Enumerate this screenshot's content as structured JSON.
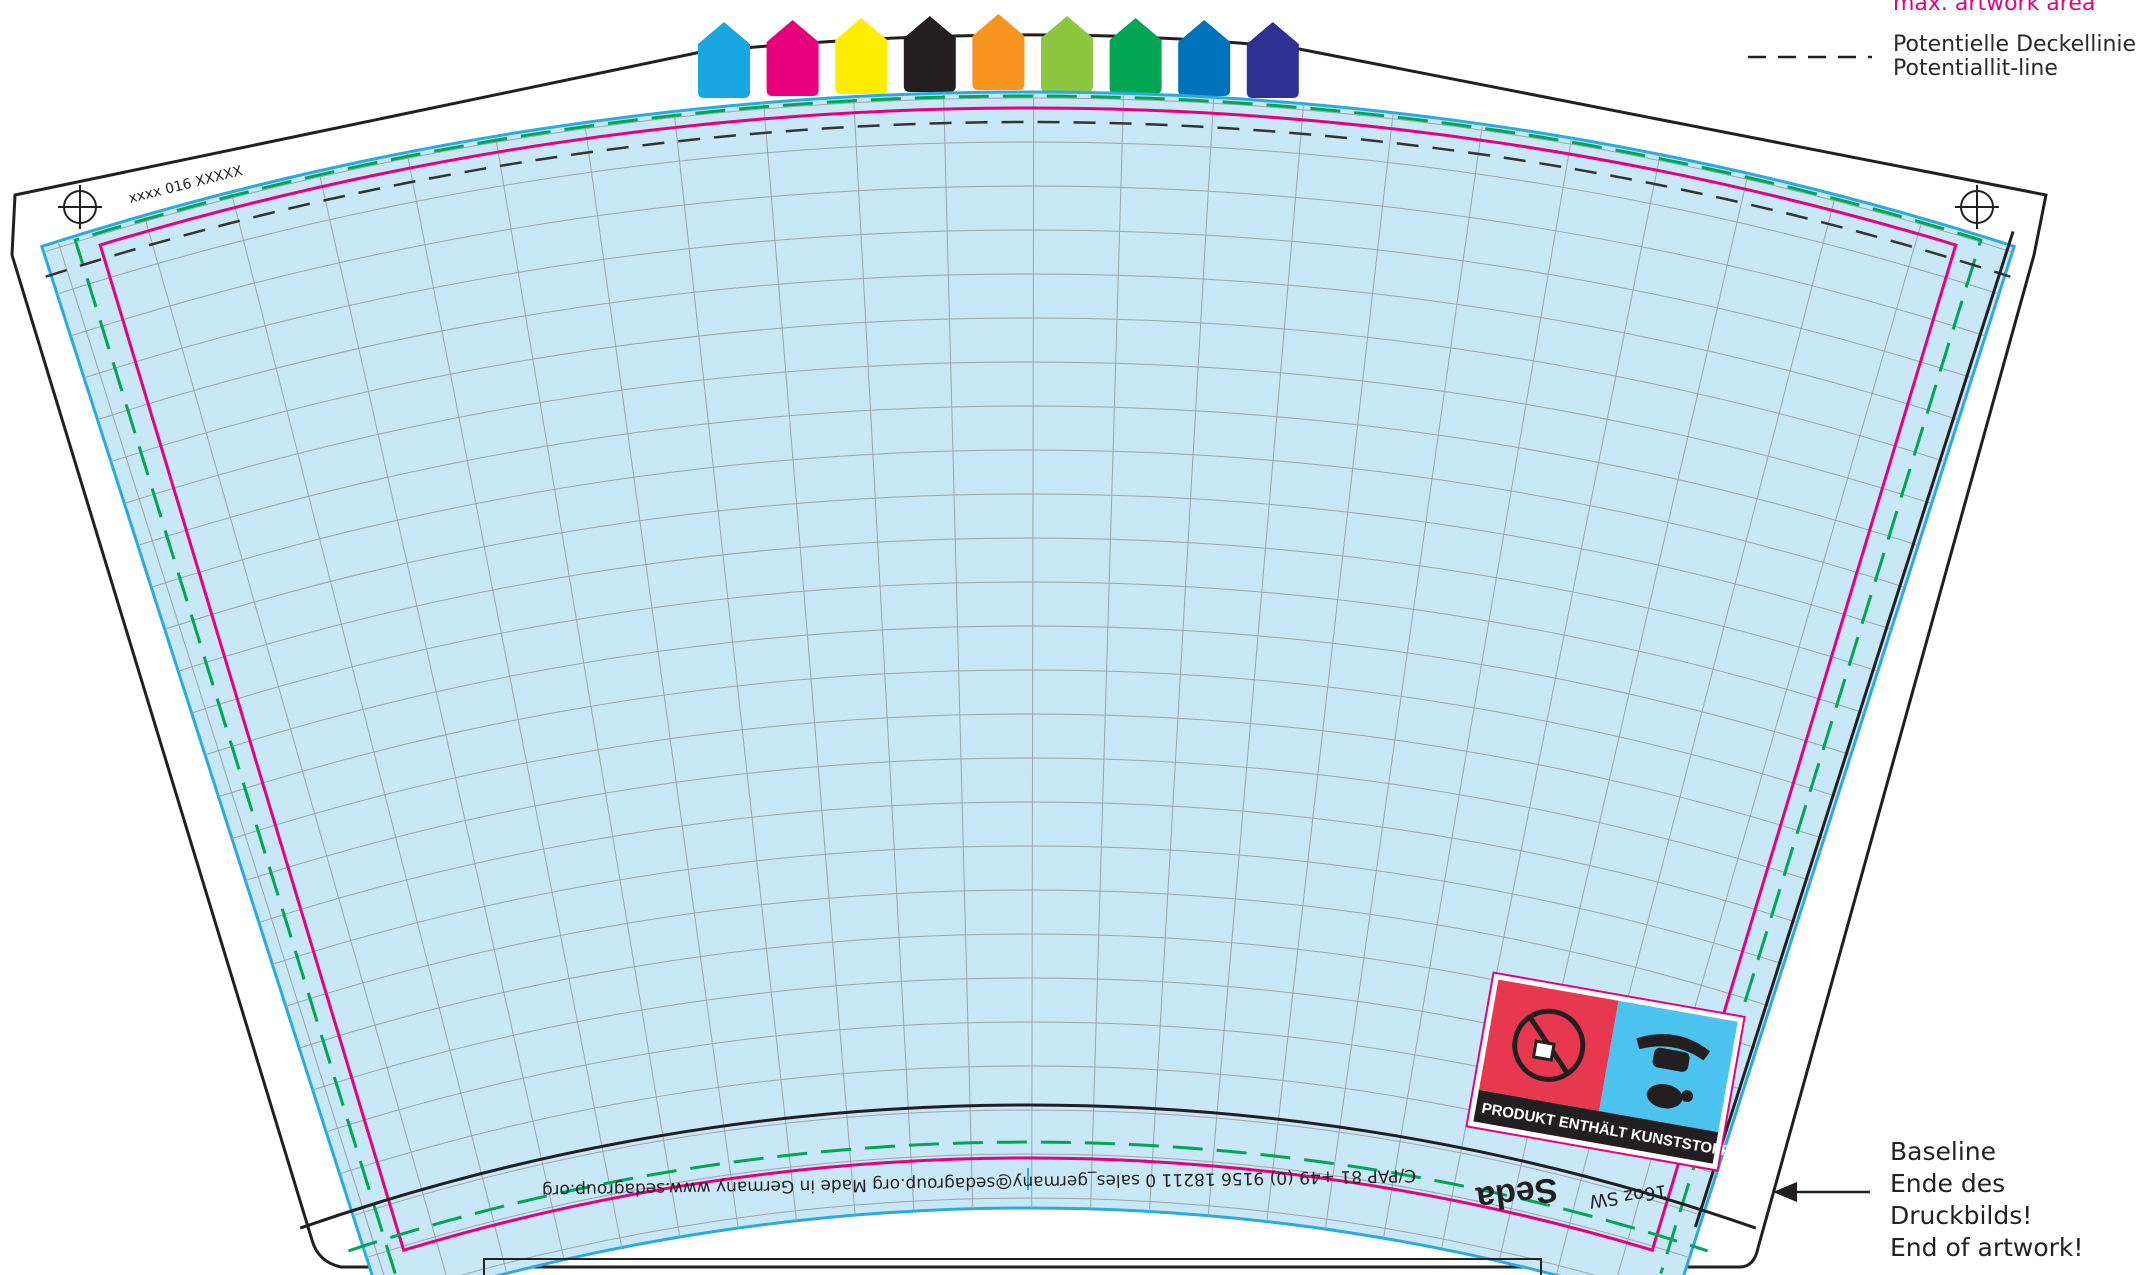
{
  "legend": {
    "max_artwork_label": "max. artwork area",
    "lid_line_de": "Potentielle Deckellinie",
    "lid_line_en": "Potentiallit-line"
  },
  "template": {
    "article_code": "xxxx 016 XXXXX",
    "footer_text": "C/PAP 81    +49 (0) 9156 18211 0    sales_germany@sedagroup.org    Made in Germany    www.sedagroup.org",
    "brand": "Seda",
    "size_label": "16oz SW"
  },
  "warning_label": {
    "text": "PRODUKT ENTHÄLT KUNSTSTOFF",
    "left_color": "#e8384f",
    "right_color": "#4cc3ee"
  },
  "baseline_note": {
    "line1": "Baseline",
    "line2": "Ende des Druckbilds!",
    "line3": "End of artwork!"
  },
  "color_swatches": [
    {
      "name": "cyan",
      "color": "#1aa7e1"
    },
    {
      "name": "magenta",
      "color": "#e6007e"
    },
    {
      "name": "yellow",
      "color": "#ffed00"
    },
    {
      "name": "black",
      "color": "#231f20"
    },
    {
      "name": "orange",
      "color": "#f7941d"
    },
    {
      "name": "light-green",
      "color": "#8dc63f"
    },
    {
      "name": "green",
      "color": "#00a651"
    },
    {
      "name": "blue",
      "color": "#0072bc"
    },
    {
      "name": "violet",
      "color": "#2e3192"
    }
  ],
  "colors": {
    "bleed_fill": "#c8e8f8",
    "bleed_stroke": "#29abe2",
    "artwork_line": "#e6007e",
    "safe_line": "#00a651",
    "grid": "#9aa5ab"
  }
}
